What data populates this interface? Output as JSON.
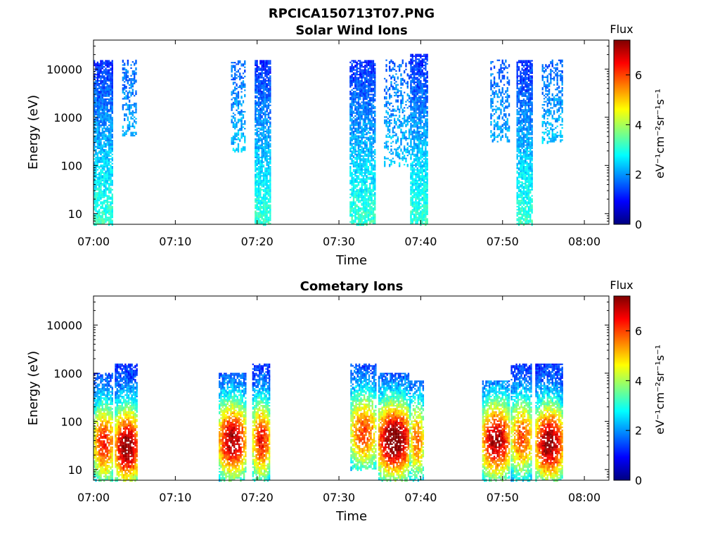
{
  "figure": {
    "title": "RPCICA150713T07.PNG"
  },
  "colorbar": {
    "title": "Flux",
    "label": "eV⁻¹cm⁻²sr⁻¹s⁻¹",
    "ticks": [
      "0",
      "2",
      "4",
      "6"
    ],
    "range": [
      0,
      7.4
    ],
    "colormap": "jet"
  },
  "chart_data": [
    {
      "type": "heatmap",
      "title": "Solar Wind Ions",
      "xlabel": "Time",
      "ylabel": "Energy (eV)",
      "xticks": [
        "07:00",
        "07:10",
        "07:20",
        "07:30",
        "07:40",
        "07:50",
        "08:00"
      ],
      "yticks": [
        "10",
        "100",
        "1000",
        "10000"
      ],
      "xlim_minutes": [
        0,
        63
      ],
      "ylim": [
        6,
        40000
      ],
      "yscale": "log",
      "color_value_label": "Flux",
      "blobs": [
        {
          "t_start": 0,
          "t_end": 2.3,
          "e_low": 6,
          "e_high": 15000,
          "flux_low_energy": 3.2,
          "flux_high_energy": 1.2,
          "density": 0.75
        },
        {
          "t_start": 3.5,
          "t_end": 5.3,
          "e_low": 400,
          "e_high": 15000,
          "flux_low_energy": 2.2,
          "flux_high_energy": 1.6,
          "density": 0.35
        },
        {
          "t_start": 16.8,
          "t_end": 18.5,
          "e_low": 200,
          "e_high": 15000,
          "flux_low_energy": 2.4,
          "flux_high_energy": 1.6,
          "density": 0.35
        },
        {
          "t_start": 19.7,
          "t_end": 21.5,
          "e_low": 6,
          "e_high": 15000,
          "flux_low_energy": 3.2,
          "flux_high_energy": 1.2,
          "density": 0.75
        },
        {
          "t_start": 31.3,
          "t_end": 34.4,
          "e_low": 6,
          "e_high": 15000,
          "flux_low_energy": 3.2,
          "flux_high_energy": 1.2,
          "density": 0.7
        },
        {
          "t_start": 35.5,
          "t_end": 38.6,
          "e_low": 100,
          "e_high": 15000,
          "flux_low_energy": 2.4,
          "flux_high_energy": 1.6,
          "density": 0.3
        },
        {
          "t_start": 38.7,
          "t_end": 40.8,
          "e_low": 6,
          "e_high": 20000,
          "flux_low_energy": 3.2,
          "flux_high_energy": 1.2,
          "density": 0.75
        },
        {
          "t_start": 48.5,
          "t_end": 50.8,
          "e_low": 300,
          "e_high": 15000,
          "flux_low_energy": 2.2,
          "flux_high_energy": 1.6,
          "density": 0.3
        },
        {
          "t_start": 51.7,
          "t_end": 53.6,
          "e_low": 6,
          "e_high": 15000,
          "flux_low_energy": 3.2,
          "flux_high_energy": 1.2,
          "density": 0.75
        },
        {
          "t_start": 54.8,
          "t_end": 57.3,
          "e_low": 300,
          "e_high": 15000,
          "flux_low_energy": 2.4,
          "flux_high_energy": 1.6,
          "density": 0.35
        }
      ]
    },
    {
      "type": "heatmap",
      "title": "Cometary Ions",
      "xlabel": "Time",
      "ylabel": "Energy (eV)",
      "xticks": [
        "07:00",
        "07:10",
        "07:20",
        "07:30",
        "07:40",
        "07:50",
        "08:00"
      ],
      "yticks": [
        "10",
        "100",
        "1000",
        "10000"
      ],
      "xlim_minutes": [
        0,
        63
      ],
      "ylim": [
        6,
        40000
      ],
      "yscale": "log",
      "color_value_label": "Flux",
      "blobs": [
        {
          "t_start": 0,
          "t_end": 2.4,
          "e_low": 6,
          "e_high": 1000,
          "peak_energy": 35,
          "peak_flux": 5.2,
          "density": 0.7
        },
        {
          "t_start": 2.6,
          "t_end": 5.4,
          "e_low": 6,
          "e_high": 1500,
          "peak_energy": 30,
          "peak_flux": 6.3,
          "density": 0.75
        },
        {
          "t_start": 15.3,
          "t_end": 18.5,
          "e_low": 6,
          "e_high": 1000,
          "peak_energy": 40,
          "peak_flux": 6.0,
          "density": 0.7
        },
        {
          "t_start": 19.4,
          "t_end": 21.5,
          "e_low": 6,
          "e_high": 1500,
          "peak_energy": 40,
          "peak_flux": 5.3,
          "density": 0.7
        },
        {
          "t_start": 31.4,
          "t_end": 34.5,
          "e_low": 10,
          "e_high": 1500,
          "peak_energy": 60,
          "peak_flux": 4.8,
          "density": 0.65
        },
        {
          "t_start": 34.8,
          "t_end": 38.6,
          "e_low": 6,
          "e_high": 1000,
          "peak_energy": 40,
          "peak_flux": 6.5,
          "density": 0.75
        },
        {
          "t_start": 38.6,
          "t_end": 40.3,
          "e_low": 6,
          "e_high": 700,
          "peak_energy": 40,
          "peak_flux": 4.6,
          "density": 0.55
        },
        {
          "t_start": 47.5,
          "t_end": 50.8,
          "e_low": 6,
          "e_high": 700,
          "peak_energy": 40,
          "peak_flux": 6.0,
          "density": 0.7
        },
        {
          "t_start": 51.0,
          "t_end": 53.6,
          "e_low": 6,
          "e_high": 1500,
          "peak_energy": 45,
          "peak_flux": 4.8,
          "density": 0.65
        },
        {
          "t_start": 54.0,
          "t_end": 57.3,
          "e_low": 6,
          "e_high": 1500,
          "peak_energy": 35,
          "peak_flux": 6.2,
          "density": 0.75
        }
      ]
    }
  ]
}
